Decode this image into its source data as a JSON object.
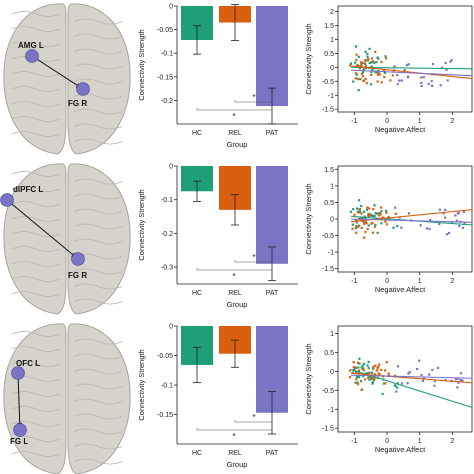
{
  "colors": {
    "HC": "#1f9e7a",
    "REL": "#d95f0e",
    "PAT": "#7b73c4",
    "roi_node": "#7b73c4",
    "brain": "#d6d3cd"
  },
  "brain_panels": [
    {
      "roi_a": "AMG L",
      "roi_b": "FG R"
    },
    {
      "roi_a": "dlPFC L",
      "roi_b": "FG R"
    },
    {
      "roi_a": "OFC L",
      "roi_b": "FG L"
    }
  ],
  "chart_data": [
    {
      "type": "bar",
      "categories": [
        "HC",
        "REL",
        "PAT"
      ],
      "values": [
        -0.072,
        -0.035,
        -0.212
      ],
      "error": [
        0.03,
        0.038,
        0.038
      ],
      "xlabel": "Group",
      "ylabel": "Connectivity Strength",
      "ylim": [
        -0.25,
        0.0
      ],
      "yticks": [
        "0",
        "-0.05",
        "-0.1",
        "-0.15",
        "-0.2"
      ],
      "significance": [
        "*",
        "*"
      ]
    },
    {
      "type": "scatter",
      "series": [
        {
          "color_key": "HC",
          "trend": [
            [
              -1.1,
              0.0
            ],
            [
              2.6,
              -0.05
            ]
          ]
        },
        {
          "color_key": "REL",
          "trend": [
            [
              -1.1,
              0.05
            ],
            [
              2.6,
              -0.4
            ]
          ]
        },
        {
          "color_key": "PAT",
          "trend": [
            [
              -1.1,
              -0.1
            ],
            [
              2.6,
              -0.3
            ]
          ]
        }
      ],
      "xlabel": "Negative Affect",
      "ylabel": "Connectivity Strength",
      "xlim": [
        -1.5,
        2.6
      ],
      "ylim": [
        -1.6,
        2.2
      ],
      "xticks": [
        "-1",
        "0",
        "1",
        "2"
      ],
      "yticks": [
        "2",
        "1.5",
        "1",
        "0.5",
        "0",
        "-0.5",
        "-1",
        "-1.5"
      ]
    },
    {
      "type": "bar",
      "categories": [
        "HC",
        "REL",
        "PAT"
      ],
      "values": [
        -0.075,
        -0.13,
        -0.29
      ],
      "error": [
        0.03,
        0.045,
        0.05
      ],
      "xlabel": "Group",
      "ylabel": "Connectivity Strength",
      "ylim": [
        -0.35,
        0.0
      ],
      "yticks": [
        "0",
        "-0.1",
        "-0.2",
        "-0.3"
      ],
      "significance": [
        "*",
        "*"
      ]
    },
    {
      "type": "scatter",
      "series": [
        {
          "color_key": "HC",
          "trend": [
            [
              -1.1,
              0.08
            ],
            [
              2.6,
              -0.18
            ]
          ]
        },
        {
          "color_key": "REL",
          "trend": [
            [
              -1.1,
              -0.08
            ],
            [
              2.6,
              0.28
            ]
          ]
        },
        {
          "color_key": "PAT",
          "trend": [
            [
              -1.1,
              0.0
            ],
            [
              2.6,
              -0.1
            ]
          ]
        }
      ],
      "xlabel": "Negative Affect",
      "ylabel": "Connectivity Strength",
      "xlim": [
        -1.5,
        2.6
      ],
      "ylim": [
        -1.6,
        1.6
      ],
      "xticks": [
        "-1",
        "0",
        "1",
        "2"
      ],
      "yticks": [
        "1.5",
        "1",
        "0.5",
        "0",
        "-0.5",
        "-1",
        "-1.5"
      ]
    },
    {
      "type": "bar",
      "categories": [
        "HC",
        "REL",
        "PAT"
      ],
      "values": [
        -0.066,
        -0.047,
        -0.147
      ],
      "error": [
        0.03,
        0.023,
        0.036
      ],
      "xlabel": "Group",
      "ylabel": "Connectivity Strength",
      "ylim": [
        -0.2,
        0.0
      ],
      "yticks": [
        "0",
        "-0.05",
        "-0.1",
        "-0.15"
      ],
      "significance": [
        "*",
        "*"
      ]
    },
    {
      "type": "scatter",
      "series": [
        {
          "color_key": "HC",
          "trend": [
            [
              -1.1,
              0.05
            ],
            [
              2.6,
              -0.95
            ]
          ]
        },
        {
          "color_key": "REL",
          "trend": [
            [
              -1.1,
              -0.05
            ],
            [
              2.6,
              -0.3
            ]
          ]
        },
        {
          "color_key": "PAT",
          "trend": [
            [
              -1.1,
              -0.1
            ],
            [
              2.6,
              -0.18
            ]
          ]
        }
      ],
      "xlabel": "Negative Affect",
      "ylabel": "Connectivity Strength",
      "xlim": [
        -1.5,
        2.6
      ],
      "ylim": [
        -1.6,
        1.2
      ],
      "xticks": [
        "-1",
        "0",
        "1",
        "2"
      ],
      "yticks": [
        "1",
        "0.5",
        "0",
        "-0.5",
        "-1",
        "-1.5"
      ]
    }
  ]
}
